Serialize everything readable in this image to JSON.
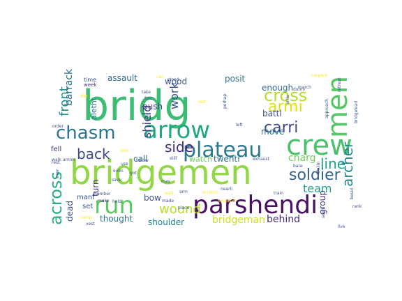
{
  "cloud": {
    "words": [
      {
        "text": "bridg",
        "color": "#3dbc74"
      },
      {
        "text": "bridgemen",
        "color": "#8fd744"
      },
      {
        "text": "parshendi",
        "color": "#471164"
      },
      {
        "text": "men",
        "color": "#56c667"
      },
      {
        "text": "crew",
        "color": "#4ac16d"
      },
      {
        "text": "arrow",
        "color": "#22a884"
      },
      {
        "text": "run",
        "color": "#5ec962"
      },
      {
        "text": "plateau",
        "color": "#2a788e"
      },
      {
        "text": "chasm",
        "color": "#2a778e"
      },
      {
        "text": "cross",
        "color": "#b5de2b"
      },
      {
        "text": "soldier",
        "color": "#33638d"
      },
      {
        "text": "across",
        "color": "#29af7f"
      },
      {
        "text": "armi",
        "color": "#d8e219"
      },
      {
        "text": "carri",
        "color": "#3e4a89"
      },
      {
        "text": "archer",
        "color": "#25858e"
      },
      {
        "text": "line",
        "color": "#1f9e89"
      },
      {
        "text": "front",
        "color": "#21918c"
      },
      {
        "text": "back",
        "color": "#3e4989"
      },
      {
        "text": "side",
        "color": "#472c7a"
      },
      {
        "text": "wound",
        "color": "#b5de2b"
      },
      {
        "text": "team",
        "color": "#20a386"
      },
      {
        "text": "shield",
        "color": "#433e85"
      },
      {
        "text": "work",
        "color": "#3b528b"
      },
      {
        "text": "behind",
        "color": "#482878"
      },
      {
        "text": "charg",
        "color": "#6ccd5a"
      },
      {
        "text": "barrack",
        "color": "#2c728e"
      },
      {
        "text": "bridgeman",
        "color": "#cae11f"
      },
      {
        "text": "shoulder",
        "color": "#25838e"
      },
      {
        "text": "thought",
        "color": "#2d708e"
      },
      {
        "text": "battl",
        "color": "#3b528b"
      },
      {
        "text": "group",
        "color": "#443983"
      },
      {
        "text": "enough",
        "color": "#2f6c8e"
      },
      {
        "text": "posit",
        "color": "#2c728e"
      },
      {
        "text": "assault",
        "color": "#31688e"
      },
      {
        "text": "wood",
        "color": "#39568c"
      },
      {
        "text": "move",
        "color": "#2a778e"
      },
      {
        "text": "twenti",
        "color": "#2c728e"
      },
      {
        "text": "watch",
        "color": "#6ccd5a"
      },
      {
        "text": "bow",
        "color": "#3b528b"
      },
      {
        "text": "call",
        "color": "#31688e"
      },
      {
        "text": "push",
        "color": "#404688"
      },
      {
        "text": "dead",
        "color": "#3b528b"
      },
      {
        "text": "turn",
        "color": "#46307e"
      },
      {
        "text": "mani",
        "color": "#3b528b"
      },
      {
        "text": "set",
        "color": "#3b528b"
      },
      {
        "text": "fell",
        "color": "#472d7b"
      },
      {
        "text": "alethi",
        "color": "#2c728e"
      },
      {
        "text": "time",
        "color": "#3b528b"
      },
      {
        "text": "week",
        "color": "#472d7b"
      },
      {
        "text": "die",
        "color": "#fde725"
      },
      {
        "text": "order",
        "color": "#3b528b"
      },
      {
        "text": "rest",
        "color": "#3b528b"
      },
      {
        "text": "walk",
        "color": "#3b528b"
      },
      {
        "text": "armor",
        "color": "#3b528b"
      },
      {
        "text": "ever",
        "color": "#3b528b"
      },
      {
        "text": "make",
        "color": "#482878"
      },
      {
        "text": "hold",
        "color": "#3b528b"
      },
      {
        "text": "member",
        "color": "#3b528b"
      },
      {
        "text": "camp",
        "color": "#fde725"
      },
      {
        "text": "vest",
        "color": "#3b528b"
      },
      {
        "text": "use",
        "color": "#3b528b"
      },
      {
        "text": "even",
        "color": "#3b528b"
      },
      {
        "text": "got",
        "color": "#3b528b"
      },
      {
        "text": "save",
        "color": "#3b528b"
      },
      {
        "text": "skin",
        "color": "#fde725"
      },
      {
        "text": "follow",
        "color": "#3b528b"
      },
      {
        "text": "still",
        "color": "#3b528b"
      },
      {
        "text": "made",
        "color": "#3b528b"
      },
      {
        "text": "may",
        "color": "#3b528b"
      },
      {
        "text": "arm",
        "color": "#3b528b"
      },
      {
        "text": "place",
        "color": "#3b528b"
      },
      {
        "text": "nearli",
        "color": "#3b528b"
      },
      {
        "text": "exhaust",
        "color": "#3b528b"
      },
      {
        "text": "left",
        "color": "#3b528b"
      },
      {
        "text": "last",
        "color": "#fde725"
      },
      {
        "text": "stood",
        "color": "#3b528b"
      },
      {
        "text": "take",
        "color": "#3b528b"
      },
      {
        "text": "tri",
        "color": "#3b528b"
      },
      {
        "text": "forc",
        "color": "#3b528b"
      },
      {
        "text": "can",
        "color": "#fde725"
      },
      {
        "text": "perhap",
        "color": "#3b528b"
      },
      {
        "text": "arriv",
        "color": "#3b528b"
      },
      {
        "text": "dunni",
        "color": "#3b528b"
      },
      {
        "text": "march",
        "color": "#3b528b"
      },
      {
        "text": "duti",
        "color": "#fde725"
      },
      {
        "text": "carpent",
        "color": "#fde725"
      },
      {
        "text": "retreat",
        "color": "#3b528b"
      },
      {
        "text": "approach",
        "color": "#3b528b"
      },
      {
        "text": "bridgelead",
        "color": "#3b528b"
      },
      {
        "text": "khulin",
        "color": "#3b528b"
      },
      {
        "text": "seem",
        "color": "#3b528b"
      },
      {
        "text": "rank",
        "color": "#3b528b"
      },
      {
        "text": "bare",
        "color": "#3b528b"
      },
      {
        "text": "train",
        "color": "#3b528b"
      },
      {
        "text": "besid",
        "color": "#3b528b"
      },
      {
        "text": "live",
        "color": "#3b528b"
      },
      {
        "text": "suspend",
        "color": "#fde725"
      },
      {
        "text": "scratch",
        "color": "#fde725"
      },
      {
        "text": "wait",
        "color": "#fde725"
      }
    ]
  }
}
